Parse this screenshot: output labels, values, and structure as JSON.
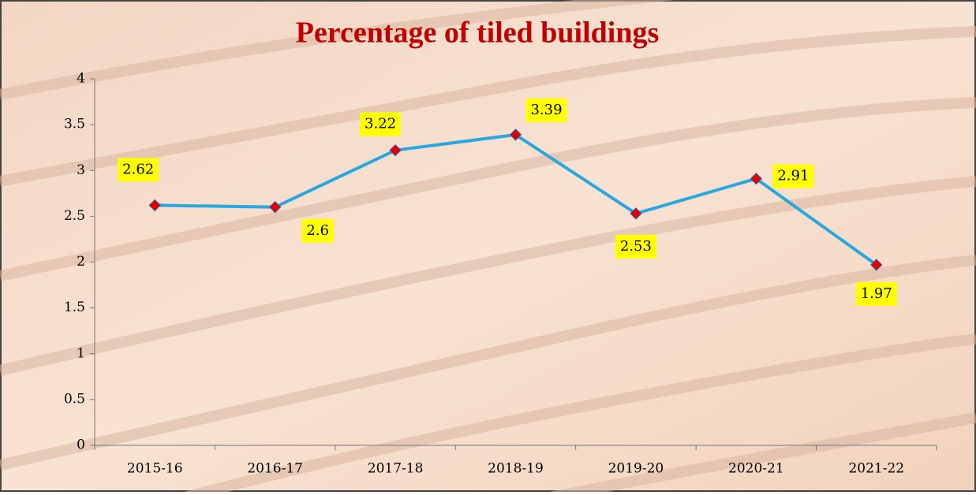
{
  "chart_data": {
    "type": "line",
    "title": "Percentage of tiled buildings",
    "categories": [
      "2015-16",
      "2016-17",
      "2017-18",
      "2018-19",
      "2019-20",
      "2020-21",
      "2021-22"
    ],
    "values": [
      2.62,
      2.6,
      3.22,
      3.39,
      2.53,
      2.91,
      1.97
    ],
    "color": "#29a8e0",
    "marker_color": "#e00000",
    "label_background": "#ffff00",
    "ylim": [
      0,
      4
    ],
    "yticks": [
      0,
      0.5,
      1,
      1.5,
      2,
      2.5,
      3,
      3.5,
      4
    ]
  }
}
